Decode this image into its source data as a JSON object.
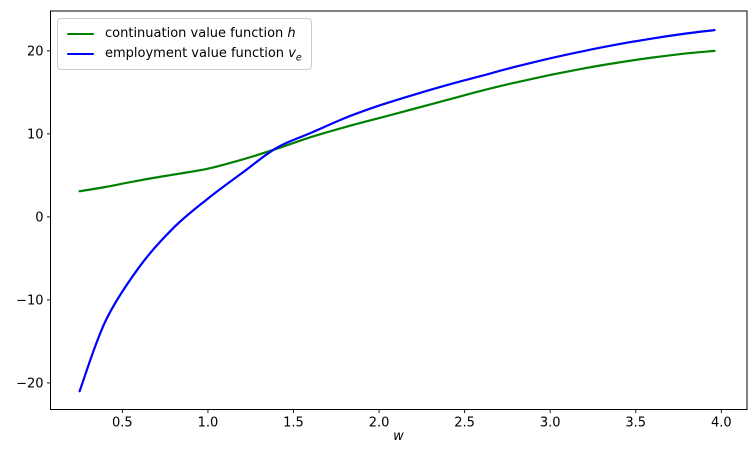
{
  "figure": {
    "background": "#ffffff",
    "plot_border_color": "#000000"
  },
  "legend": {
    "items": [
      {
        "key": "h",
        "label_prefix": "continuation value function ",
        "symbol": "h",
        "subscript": "",
        "color": "#008000"
      },
      {
        "key": "v_e",
        "label_prefix": "employment value function ",
        "symbol": "v",
        "subscript": "e",
        "color": "#0000ff"
      }
    ]
  },
  "chart_data": {
    "type": "line",
    "title": "",
    "xlabel": "w",
    "ylabel": "",
    "xlim": [
      0.08,
      4.15
    ],
    "ylim": [
      -23.2,
      24.8
    ],
    "x_ticks": [
      0.5,
      1.0,
      1.5,
      2.0,
      2.5,
      3.0,
      3.5,
      4.0
    ],
    "y_ticks": [
      -20,
      -10,
      0,
      10,
      20
    ],
    "grid": false,
    "legend_position": "upper left",
    "series": [
      {
        "key": "h",
        "name": "continuation value function h",
        "color": "#008000",
        "x": [
          0.25,
          0.4,
          0.6,
          0.8,
          1.0,
          1.2,
          1.4,
          1.6,
          1.8,
          2.0,
          2.2,
          2.4,
          2.6,
          2.8,
          3.0,
          3.2,
          3.4,
          3.6,
          3.8,
          3.96
        ],
        "y": [
          3.1,
          3.6,
          4.4,
          5.1,
          5.8,
          6.9,
          8.2,
          9.6,
          10.8,
          11.9,
          13.0,
          14.1,
          15.2,
          16.2,
          17.1,
          17.9,
          18.6,
          19.2,
          19.7,
          20.0
        ]
      },
      {
        "key": "v_e",
        "name": "employment value function v_e",
        "color": "#0000ff",
        "x": [
          0.25,
          0.4,
          0.6,
          0.8,
          1.0,
          1.2,
          1.4,
          1.6,
          1.8,
          2.0,
          2.2,
          2.4,
          2.6,
          2.8,
          3.0,
          3.2,
          3.4,
          3.6,
          3.8,
          3.96
        ],
        "y": [
          -21.0,
          -12.6,
          -6.0,
          -1.3,
          2.2,
          5.3,
          8.3,
          10.1,
          11.9,
          13.4,
          14.7,
          15.9,
          17.0,
          18.1,
          19.1,
          20.0,
          20.8,
          21.5,
          22.1,
          22.5
        ]
      }
    ]
  }
}
